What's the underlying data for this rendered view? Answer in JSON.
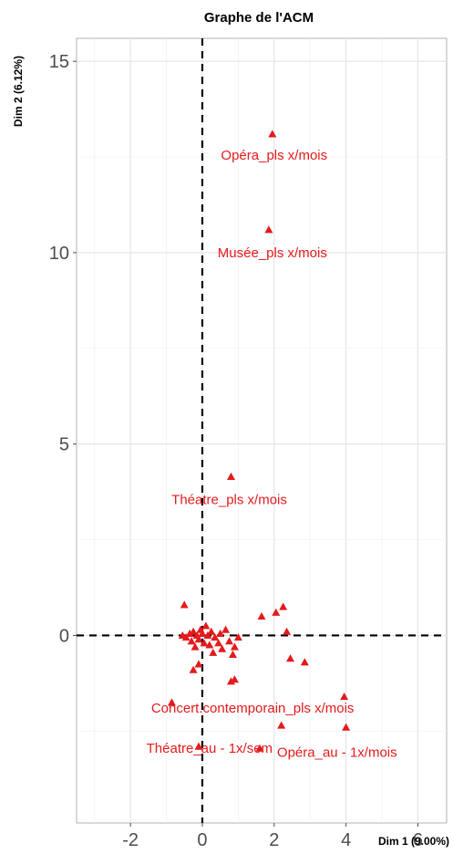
{
  "chart_data": {
    "type": "scatter",
    "title": "Graphe de l'ACM",
    "xlabel": "Dim 1 (9.00%)",
    "ylabel": "Dim 2 (6.12%)",
    "xlim": [
      -3.5,
      6.8
    ],
    "ylim": [
      -4.9,
      15.6
    ],
    "x_ticks": [
      -2,
      0,
      2,
      4,
      6
    ],
    "x_tick_labels": [
      "-2",
      "0",
      "2",
      "4",
      "6"
    ],
    "y_ticks": [
      0,
      5,
      10,
      15
    ],
    "y_tick_labels": [
      "0",
      "5",
      "10",
      "15"
    ],
    "grid": true,
    "reference_lines": {
      "x": 0,
      "y": 0,
      "style": "dashed"
    },
    "marker": "triangle",
    "color": "#e41a1c",
    "labeled_points": [
      {
        "x": 1.95,
        "y": 13.1,
        "label": "Opéra_pls x/mois",
        "lx": 2.0,
        "ly": 12.55
      },
      {
        "x": 1.85,
        "y": 10.6,
        "label": "Musée_pls x/mois",
        "lx": 1.95,
        "ly": 10.0
      },
      {
        "x": 0.8,
        "y": 4.15,
        "label": "Théatre_pls x/mois",
        "lx": 0.75,
        "ly": 3.55
      },
      {
        "x": 3.95,
        "y": -1.6,
        "label": "Concert.contemporain_pls x/mois",
        "lx": 1.4,
        "ly": -1.9
      },
      {
        "x": 2.2,
        "y": -2.35,
        "label": "Théatre_au - 1x/sem",
        "lx": 0.2,
        "ly": -2.95
      },
      {
        "x": 4.0,
        "y": -2.4,
        "label": "Opéra_au - 1x/mois",
        "lx": 3.75,
        "ly": -3.05
      }
    ],
    "unlabeled_points": [
      {
        "x": -0.5,
        "y": 0.8
      },
      {
        "x": -0.55,
        "y": 0.0
      },
      {
        "x": -0.45,
        "y": -0.05
      },
      {
        "x": -0.35,
        "y": 0.05
      },
      {
        "x": -0.3,
        "y": -0.15
      },
      {
        "x": -0.25,
        "y": 0.1
      },
      {
        "x": -0.2,
        "y": -0.3
      },
      {
        "x": -0.15,
        "y": 0.0
      },
      {
        "x": -0.1,
        "y": -0.1
      },
      {
        "x": -0.05,
        "y": 0.15
      },
      {
        "x": 0.0,
        "y": 0.05
      },
      {
        "x": 0.05,
        "y": -0.2
      },
      {
        "x": 0.1,
        "y": 0.25
      },
      {
        "x": 0.15,
        "y": 0.0
      },
      {
        "x": 0.2,
        "y": -0.25
      },
      {
        "x": 0.25,
        "y": 0.1
      },
      {
        "x": 0.3,
        "y": -0.45
      },
      {
        "x": 0.35,
        "y": -0.05
      },
      {
        "x": 0.45,
        "y": -0.2
      },
      {
        "x": 0.5,
        "y": 0.05
      },
      {
        "x": 0.55,
        "y": -0.35
      },
      {
        "x": 0.65,
        "y": 0.15
      },
      {
        "x": 0.75,
        "y": -0.15
      },
      {
        "x": 0.85,
        "y": -0.5
      },
      {
        "x": 0.9,
        "y": -0.3
      },
      {
        "x": 1.0,
        "y": -0.05
      },
      {
        "x": -0.25,
        "y": -0.9
      },
      {
        "x": -0.1,
        "y": -0.75
      },
      {
        "x": 0.8,
        "y": -1.2
      },
      {
        "x": 0.9,
        "y": -1.15
      },
      {
        "x": -0.85,
        "y": -1.75
      },
      {
        "x": -0.1,
        "y": -2.9
      },
      {
        "x": 1.65,
        "y": 0.5
      },
      {
        "x": 2.05,
        "y": 0.6
      },
      {
        "x": 2.25,
        "y": 0.75
      },
      {
        "x": 2.35,
        "y": 0.1
      },
      {
        "x": 2.45,
        "y": -0.6
      },
      {
        "x": 2.85,
        "y": -0.7
      },
      {
        "x": 1.6,
        "y": -2.95
      }
    ]
  }
}
